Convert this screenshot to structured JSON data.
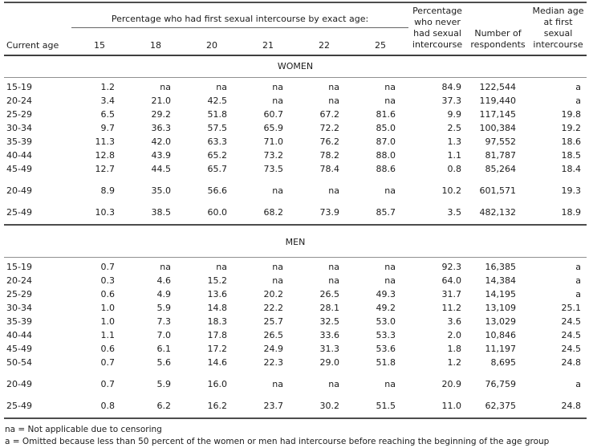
{
  "header": {
    "current_age": "Current age",
    "spanner": "Percentage who had first sexual intercourse by exact age:",
    "exact_ages": [
      "15",
      "18",
      "20",
      "21",
      "22",
      "25"
    ],
    "never_label": "Percentage who never had sexual intercourse",
    "respondents_label": "Number of respondents",
    "median_label": "Median age at first sexual intercourse"
  },
  "sections": [
    {
      "label": "WOMEN",
      "rows": [
        {
          "age": "15-19",
          "by_exact_age": [
            "1.2",
            "na",
            "na",
            "na",
            "na",
            "na"
          ],
          "never": "84.9",
          "respondents": "122,544",
          "median": "a"
        },
        {
          "age": "20-24",
          "by_exact_age": [
            "3.4",
            "21.0",
            "42.5",
            "na",
            "na",
            "na"
          ],
          "never": "37.3",
          "respondents": "119,440",
          "median": "a"
        },
        {
          "age": "25-29",
          "by_exact_age": [
            "6.5",
            "29.2",
            "51.8",
            "60.7",
            "67.2",
            "81.6"
          ],
          "never": "9.9",
          "respondents": "117,145",
          "median": "19.8"
        },
        {
          "age": "30-34",
          "by_exact_age": [
            "9.7",
            "36.3",
            "57.5",
            "65.9",
            "72.2",
            "85.0"
          ],
          "never": "2.5",
          "respondents": "100,384",
          "median": "19.2"
        },
        {
          "age": "35-39",
          "by_exact_age": [
            "11.3",
            "42.0",
            "63.3",
            "71.0",
            "76.2",
            "87.0"
          ],
          "never": "1.3",
          "respondents": "97,552",
          "median": "18.6"
        },
        {
          "age": "40-44",
          "by_exact_age": [
            "12.8",
            "43.9",
            "65.2",
            "73.2",
            "78.2",
            "88.0"
          ],
          "never": "1.1",
          "respondents": "81,787",
          "median": "18.5"
        },
        {
          "age": "45-49",
          "by_exact_age": [
            "12.7",
            "44.5",
            "65.7",
            "73.5",
            "78.4",
            "88.6"
          ],
          "never": "0.8",
          "respondents": "85,264",
          "median": "18.4"
        },
        {
          "age": "20-49",
          "gap_before": true,
          "by_exact_age": [
            "8.9",
            "35.0",
            "56.6",
            "na",
            "na",
            "na"
          ],
          "never": "10.2",
          "respondents": "601,571",
          "median": "19.3"
        },
        {
          "age": "25-49",
          "gap_before": true,
          "section_end": true,
          "by_exact_age": [
            "10.3",
            "38.5",
            "60.0",
            "68.2",
            "73.9",
            "85.7"
          ],
          "never": "3.5",
          "respondents": "482,132",
          "median": "18.9"
        }
      ]
    },
    {
      "label": "MEN",
      "rows": [
        {
          "age": "15-19",
          "by_exact_age": [
            "0.7",
            "na",
            "na",
            "na",
            "na",
            "na"
          ],
          "never": "92.3",
          "respondents": "16,385",
          "median": "a"
        },
        {
          "age": "20-24",
          "by_exact_age": [
            "0.3",
            "4.6",
            "15.2",
            "na",
            "na",
            "na"
          ],
          "never": "64.0",
          "respondents": "14,384",
          "median": "a"
        },
        {
          "age": "25-29",
          "by_exact_age": [
            "0.6",
            "4.9",
            "13.6",
            "20.2",
            "26.5",
            "49.3"
          ],
          "never": "31.7",
          "respondents": "14,195",
          "median": "a"
        },
        {
          "age": "30-34",
          "by_exact_age": [
            "1.0",
            "5.9",
            "14.8",
            "22.2",
            "28.1",
            "49.2"
          ],
          "never": "11.2",
          "respondents": "13,109",
          "median": "25.1"
        },
        {
          "age": "35-39",
          "by_exact_age": [
            "1.0",
            "7.3",
            "18.3",
            "25.7",
            "32.5",
            "53.0"
          ],
          "never": "3.6",
          "respondents": "13,029",
          "median": "24.5"
        },
        {
          "age": "40-44",
          "by_exact_age": [
            "1.1",
            "7.0",
            "17.8",
            "26.5",
            "33.6",
            "53.3"
          ],
          "never": "2.0",
          "respondents": "10,846",
          "median": "24.5"
        },
        {
          "age": "45-49",
          "by_exact_age": [
            "0.6",
            "6.1",
            "17.2",
            "24.9",
            "31.3",
            "53.6"
          ],
          "never": "1.8",
          "respondents": "11,197",
          "median": "24.5"
        },
        {
          "age": "50-54",
          "by_exact_age": [
            "0.7",
            "5.6",
            "14.6",
            "22.3",
            "29.0",
            "51.8"
          ],
          "never": "1.2",
          "respondents": "8,695",
          "median": "24.8"
        },
        {
          "age": "20-49",
          "gap_before": true,
          "by_exact_age": [
            "0.7",
            "5.9",
            "16.0",
            "na",
            "na",
            "na"
          ],
          "never": "20.9",
          "respondents": "76,759",
          "median": "a"
        },
        {
          "age": "25-49",
          "gap_before": true,
          "section_end": true,
          "by_exact_age": [
            "0.8",
            "6.2",
            "16.2",
            "23.7",
            "30.2",
            "51.5"
          ],
          "never": "11.0",
          "respondents": "62,375",
          "median": "24.8"
        }
      ]
    }
  ],
  "footnotes": [
    "na = Not applicable due to censoring",
    "a = Omitted because less than 50 percent of the women or men had intercourse before reaching the beginning of the age group"
  ]
}
